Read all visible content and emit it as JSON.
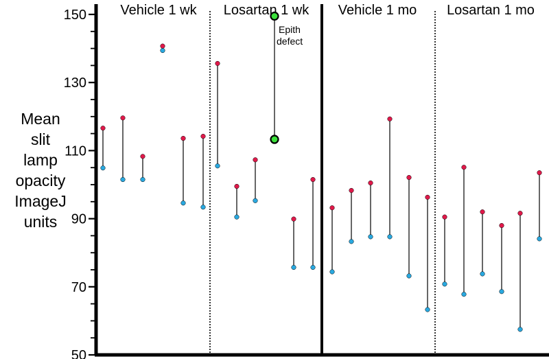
{
  "chart_data": {
    "type": "dumbbell",
    "ylabel_lines": [
      "Mean",
      "slit",
      "lamp",
      "opacity",
      "ImageJ",
      "units"
    ],
    "ylim": [
      50,
      150
    ],
    "yticks": [
      50,
      70,
      90,
      110,
      130,
      150
    ],
    "groups": [
      "Vehicle 1 wk",
      "Losartan 1 wk",
      "Vehicle 1 mo",
      "Losartan 1 mo"
    ],
    "colors": {
      "red": "#e0194a",
      "blue": "#2aa9e0",
      "green": "#3be03b",
      "line": "#000000"
    },
    "annotation": {
      "text_lines": [
        "Epith",
        "defect"
      ]
    },
    "points": [
      {
        "group": "Vehicle 1 wk",
        "red": 116.6,
        "blue": 104.9
      },
      {
        "group": "Vehicle 1 wk",
        "red": 119.6,
        "blue": 101.5
      },
      {
        "group": "Vehicle 1 wk",
        "red": 108.3,
        "blue": 101.5
      },
      {
        "group": "Vehicle 1 wk",
        "red": 140.7,
        "blue": 139.4
      },
      {
        "group": "Vehicle 1 wk",
        "red": 113.6,
        "blue": 94.6
      },
      {
        "group": "Vehicle 1 wk",
        "red": 114.2,
        "blue": 93.4
      },
      {
        "group": "Losartan 1 wk",
        "red": 135.6,
        "blue": 105.5
      },
      {
        "group": "Losartan 1 wk",
        "red": 99.5,
        "blue": 90.5
      },
      {
        "group": "Losartan 1 wk",
        "red": 107.3,
        "blue": 95.3
      },
      {
        "group": "Losartan 1 wk",
        "red": 149.5,
        "blue": 113.3,
        "marker": "green"
      },
      {
        "group": "Losartan 1 wk",
        "red": 89.9,
        "blue": 75.7
      },
      {
        "group": "Losartan 1 wk",
        "red": 101.5,
        "blue": 75.7
      },
      {
        "group": "Vehicle 1 mo",
        "red": 93.2,
        "blue": 74.4
      },
      {
        "group": "Vehicle 1 mo",
        "red": 98.3,
        "blue": 83.3
      },
      {
        "group": "Vehicle 1 mo",
        "red": 100.5,
        "blue": 84.7
      },
      {
        "group": "Vehicle 1 mo",
        "red": 119.3,
        "blue": 84.7
      },
      {
        "group": "Vehicle 1 mo",
        "red": 102.1,
        "blue": 73.2
      },
      {
        "group": "Vehicle 1 mo",
        "red": 96.3,
        "blue": 63.3
      },
      {
        "group": "Losartan 1 mo",
        "red": 90.5,
        "blue": 70.8
      },
      {
        "group": "Losartan 1 mo",
        "red": 105.1,
        "blue": 67.8
      },
      {
        "group": "Losartan 1 mo",
        "red": 92.0,
        "blue": 73.8
      },
      {
        "group": "Losartan 1 mo",
        "red": 88.0,
        "blue": 68.6
      },
      {
        "group": "Losartan 1 mo",
        "red": 91.6,
        "blue": 57.5
      },
      {
        "group": "Losartan 1 mo",
        "red": 103.5,
        "blue": 84.1
      }
    ]
  }
}
